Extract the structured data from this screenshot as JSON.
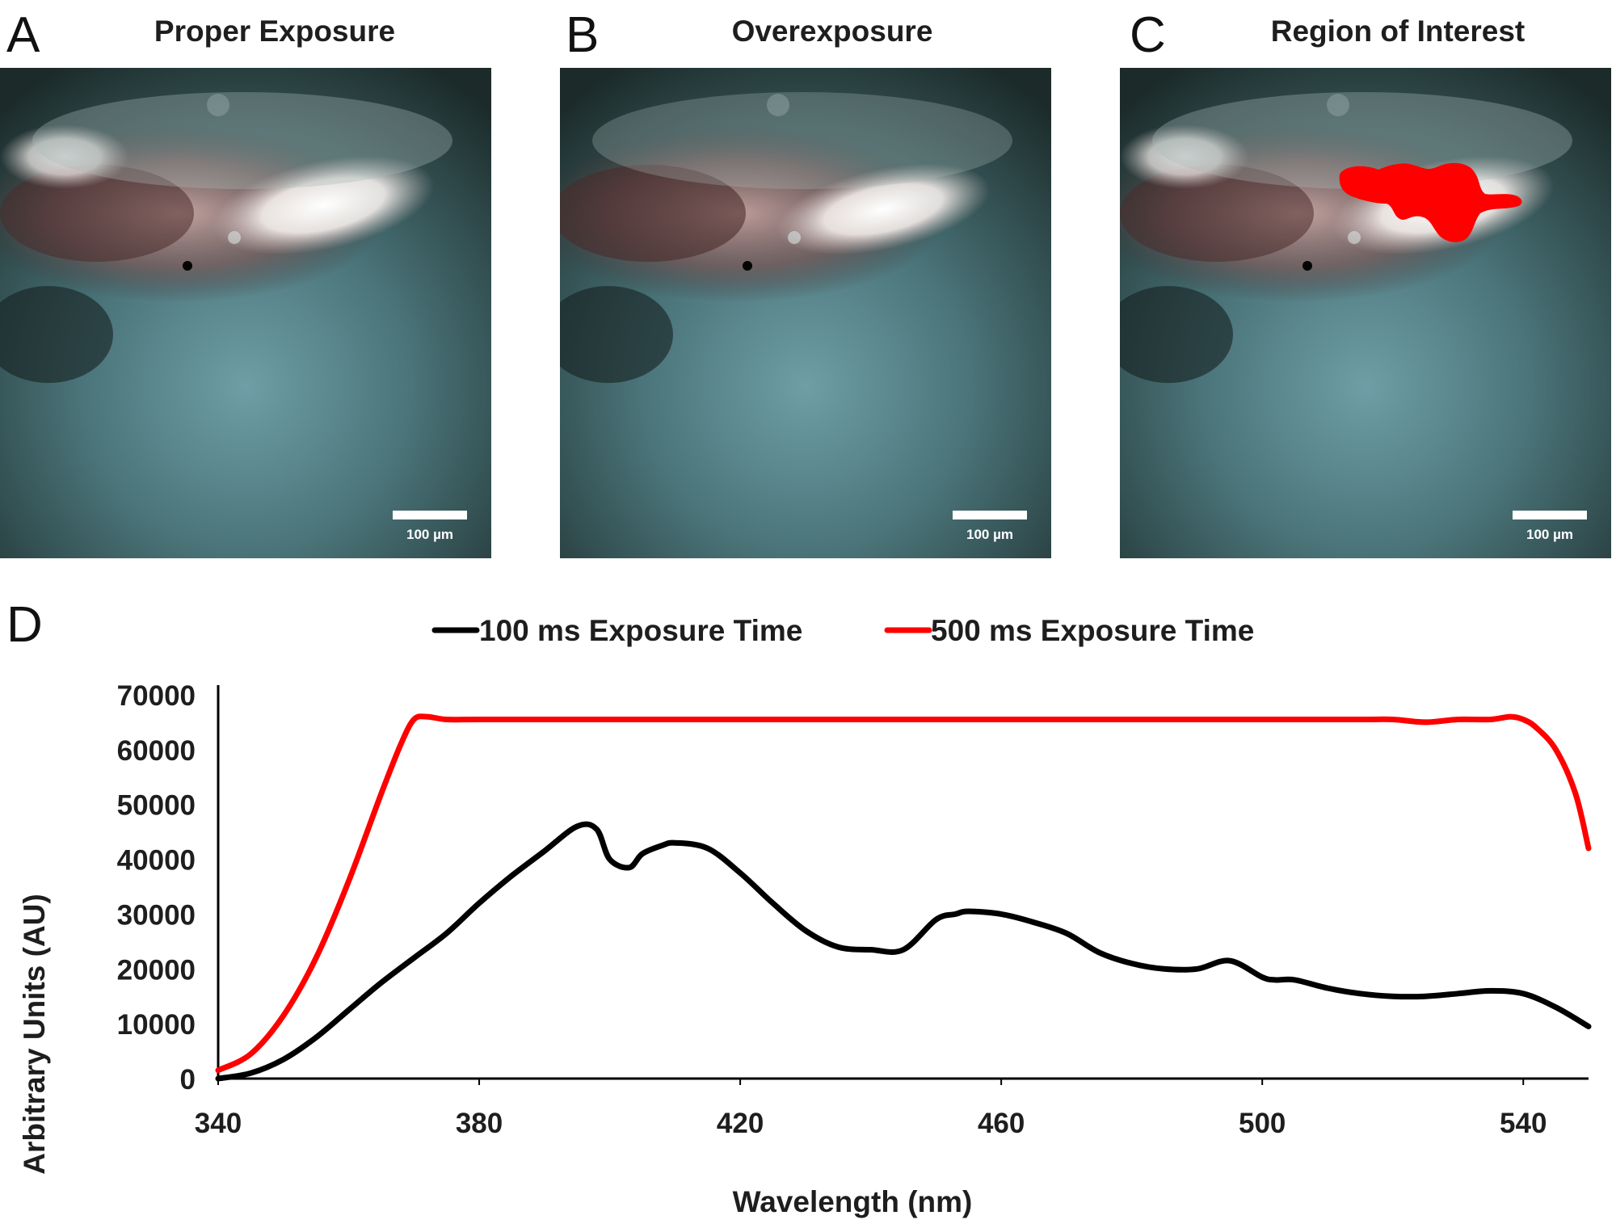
{
  "panels": [
    {
      "letter": "A",
      "title": "Proper Exposure",
      "scale_label": "100 µm",
      "roi": false
    },
    {
      "letter": "B",
      "title": "Overexposure",
      "scale_label": "100 µm",
      "roi": false
    },
    {
      "letter": "C",
      "title": "Region of Interest",
      "scale_label": "100 µm",
      "roi": true
    }
  ],
  "chart_panel_letter": "D",
  "colors": {
    "series_100ms": "#000000",
    "series_500ms": "#ff0000",
    "roi": "#ff0000"
  },
  "chart_data": {
    "type": "line",
    "title": "",
    "xlabel": "Wavelength (nm)",
    "ylabel": "Arbitrary Units (AU)",
    "xlim": [
      340,
      550
    ],
    "ylim": [
      0,
      70000
    ],
    "xticks": [
      340,
      380,
      420,
      460,
      500,
      540
    ],
    "yticks": [
      0,
      10000,
      20000,
      30000,
      40000,
      50000,
      60000,
      70000
    ],
    "legend_position": "top-center",
    "grid": false,
    "series": [
      {
        "name": "100 ms Exposure Time",
        "color": "#000000",
        "x": [
          340,
          345,
          350,
          355,
          360,
          365,
          370,
          375,
          380,
          385,
          390,
          395,
          398,
          400,
          403,
          405,
          408,
          410,
          415,
          420,
          425,
          430,
          435,
          440,
          445,
          450,
          453,
          455,
          460,
          465,
          470,
          475,
          480,
          485,
          490,
          495,
          500,
          502,
          505,
          510,
          515,
          520,
          525,
          530,
          535,
          540,
          545,
          550
        ],
        "y": [
          0,
          1000,
          3500,
          7500,
          12500,
          17500,
          22000,
          26500,
          32000,
          37000,
          41500,
          46000,
          45500,
          40000,
          38500,
          41000,
          42500,
          43000,
          42000,
          37500,
          32000,
          27000,
          24000,
          23500,
          23500,
          29000,
          30000,
          30500,
          30000,
          28500,
          26500,
          23000,
          21000,
          20000,
          20000,
          21500,
          18500,
          18000,
          18000,
          16500,
          15500,
          15000,
          15000,
          15500,
          16000,
          15500,
          13000,
          9500
        ]
      },
      {
        "name": "500 ms Exposure Time",
        "color": "#ff0000",
        "x": [
          340,
          345,
          350,
          355,
          360,
          365,
          368,
          370,
          372,
          375,
          380,
          400,
          420,
          440,
          460,
          480,
          500,
          515,
          520,
          525,
          530,
          535,
          538,
          540,
          542,
          545,
          548,
          550
        ],
        "y": [
          1500,
          4500,
          11500,
          22000,
          36000,
          52000,
          61000,
          65500,
          66000,
          65500,
          65500,
          65500,
          65500,
          65500,
          65500,
          65500,
          65500,
          65500,
          65500,
          65000,
          65500,
          65500,
          66000,
          65500,
          64000,
          60000,
          52000,
          42000
        ]
      }
    ]
  }
}
